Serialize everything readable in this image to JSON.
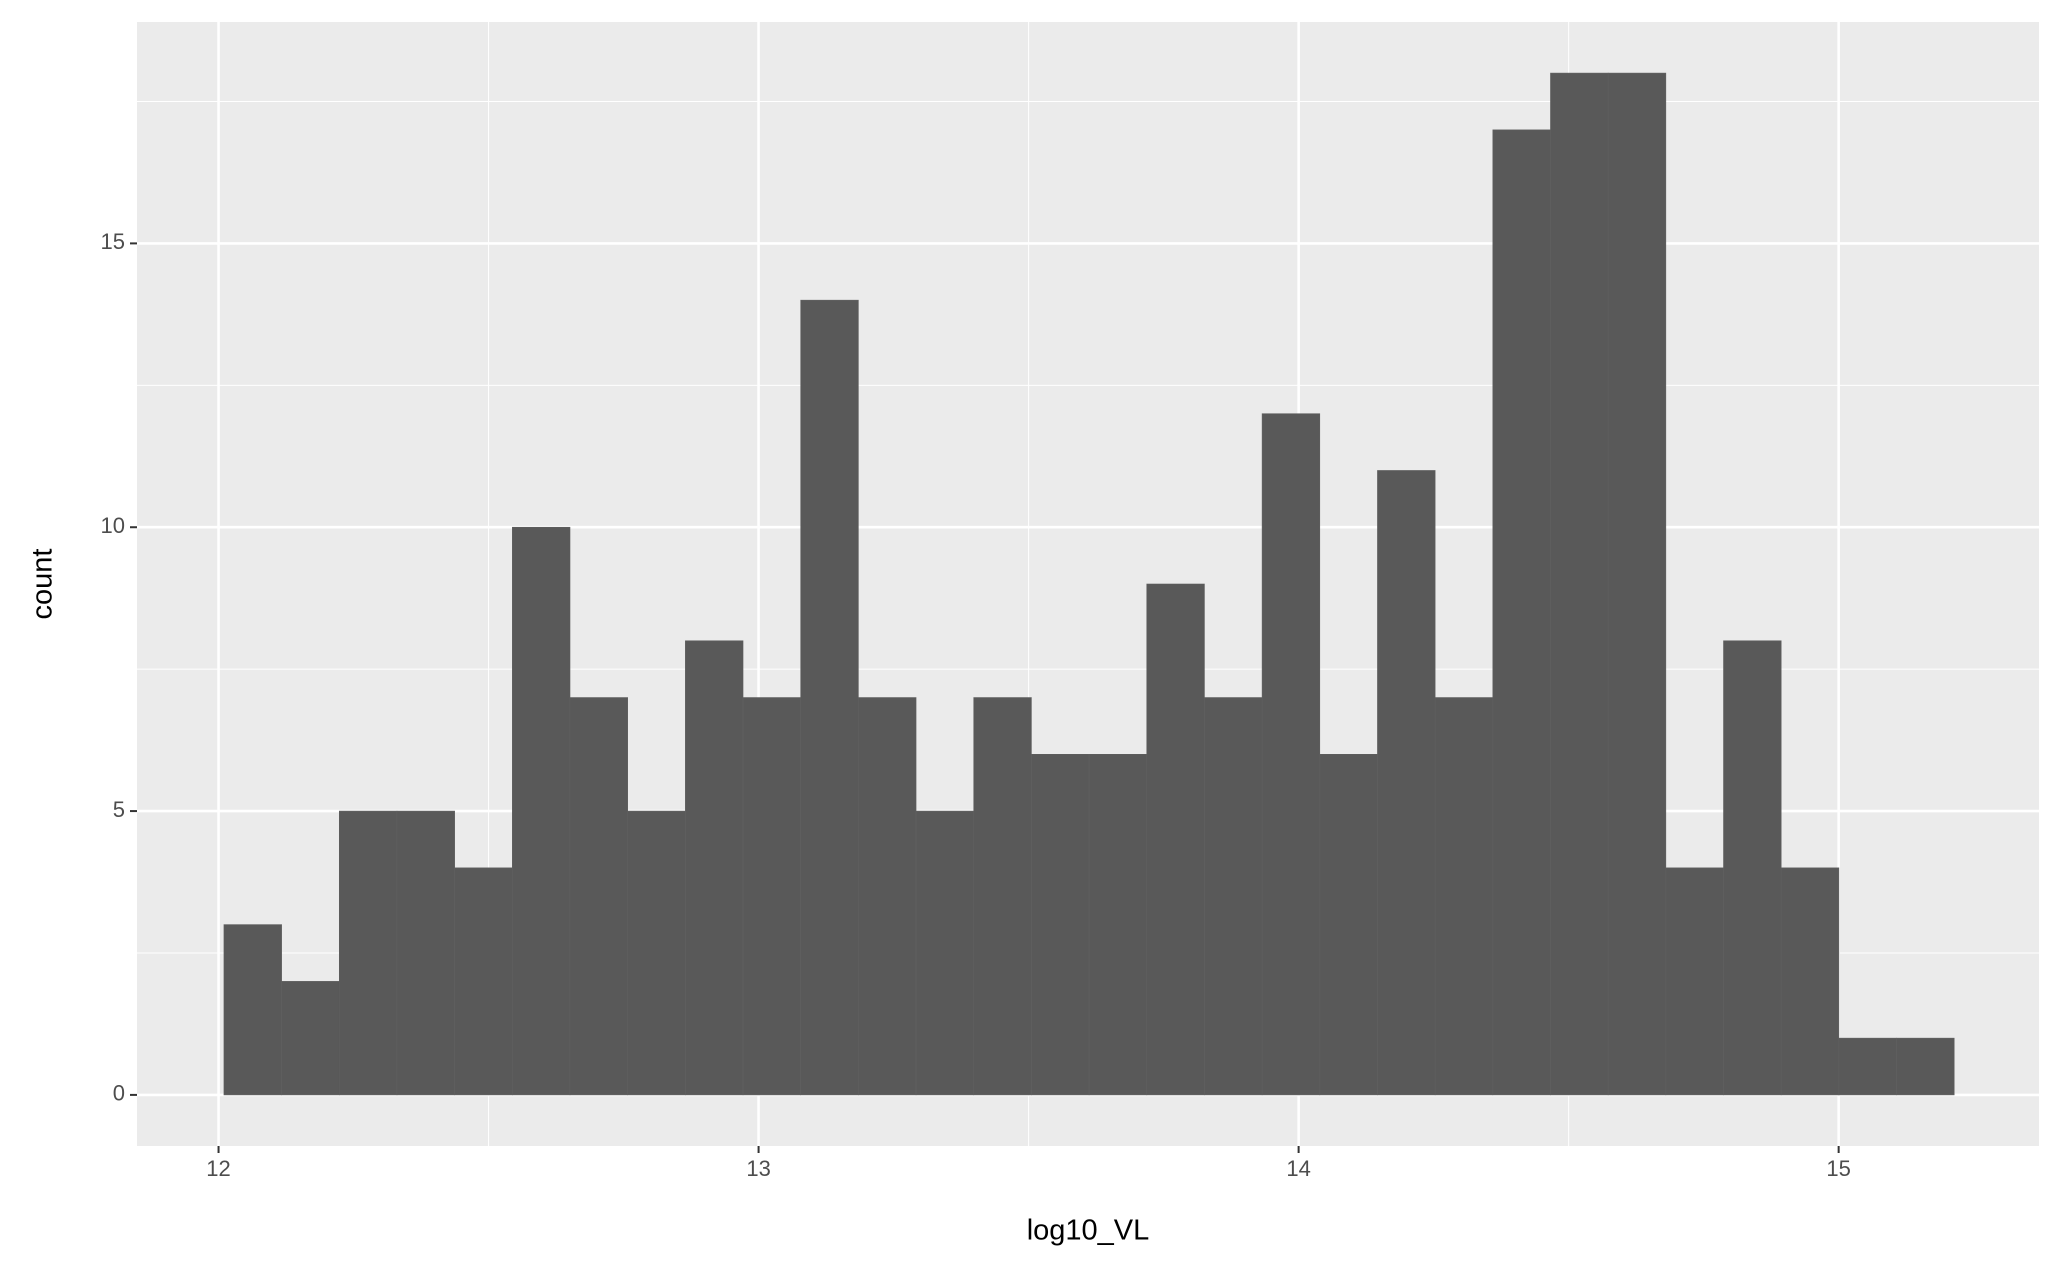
{
  "chart_data": {
    "type": "histogram",
    "x_label": "log10_VL",
    "y_label": "count",
    "bins": [
      12.01,
      12.1168,
      12.2236,
      12.3304,
      12.4372,
      12.544,
      12.6508,
      12.7576,
      12.8644,
      12.9712,
      13.078,
      13.1848,
      13.2916,
      13.3984,
      13.5052,
      13.612,
      13.7188,
      13.8256,
      13.9324,
      14.0392,
      14.146,
      14.2528,
      14.3596,
      14.4664,
      14.5732,
      14.68,
      14.7868,
      14.8936,
      15.0004,
      15.1072,
      15.214
    ],
    "values": [
      3,
      2,
      5,
      5,
      4,
      10,
      7,
      5,
      8,
      7,
      14,
      7,
      5,
      7,
      6,
      6,
      9,
      7,
      12,
      6,
      11,
      7,
      17,
      18,
      18,
      4,
      8,
      4,
      1,
      1
    ],
    "color": "#595959",
    "xlim": [
      11.849,
      15.371
    ],
    "ylim": [
      -0.9,
      18.9
    ],
    "xticks": [
      12,
      13,
      14,
      15
    ],
    "yticks": [
      0,
      5,
      10,
      15
    ],
    "grid": true
  }
}
